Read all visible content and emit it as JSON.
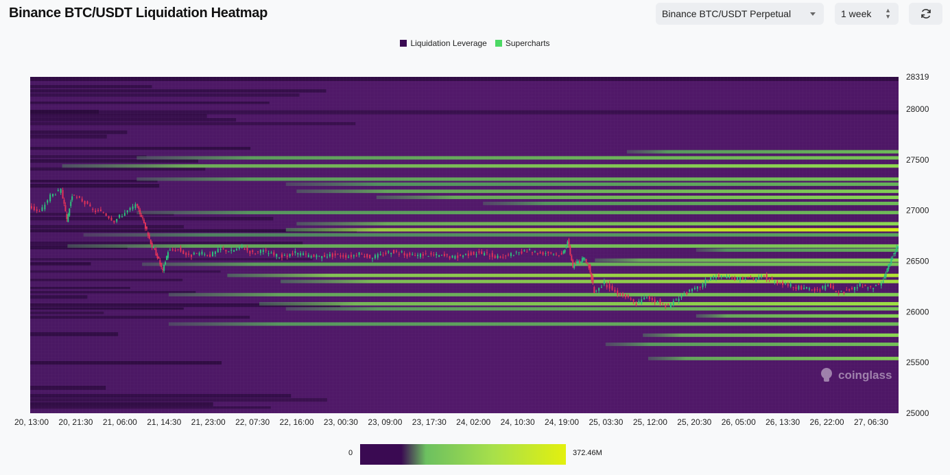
{
  "page": {
    "title": "Binance BTC/USDT Liquidation Heatmap",
    "symbol_select": "Binance BTC/USDT Perpetual",
    "period_select": "1 week",
    "refresh_icon": "refresh-icon"
  },
  "legend": [
    {
      "label": "Liquidation Leverage",
      "color": "#3a0a52"
    },
    {
      "label": "Supercharts",
      "color": "#4cd964"
    }
  ],
  "watermark": "coinglass",
  "color_scale": {
    "min_label": "0",
    "max_label": "372.46M",
    "stops": [
      "#3a0a52",
      "#3a0a52",
      "#6cc060",
      "#a8e04a",
      "#e3f00e"
    ]
  },
  "chart_data": {
    "type": "heatmap",
    "title": "Binance BTC/USDT Liquidation Heatmap",
    "x_tick_labels": [
      "20, 13:00",
      "20, 21:30",
      "21, 06:00",
      "21, 14:30",
      "21, 23:00",
      "22, 07:30",
      "22, 16:00",
      "23, 00:30",
      "23, 09:00",
      "23, 17:30",
      "24, 02:00",
      "24, 10:30",
      "24, 19:00",
      "25, 03:30",
      "25, 12:00",
      "25, 20:30",
      "26, 05:00",
      "26, 13:30",
      "26, 22:00",
      "27, 06:30"
    ],
    "y_tick_labels": [
      "28319",
      "28000",
      "27500",
      "27000",
      "26500",
      "26000",
      "25500",
      "25000"
    ],
    "y_ticks": [
      28319,
      28000,
      27500,
      27000,
      26500,
      26000,
      25500,
      25000
    ],
    "ylim": [
      25000,
      28319
    ],
    "x_range_hours": [
      0,
      163
    ],
    "liquidation_bands": [
      {
        "price": 27580,
        "start_h": 112,
        "intensity": 0.45
      },
      {
        "price": 27520,
        "start_h": 20,
        "intensity": 0.5
      },
      {
        "price": 27440,
        "start_h": 6,
        "intensity": 0.62
      },
      {
        "price": 27310,
        "start_h": 20,
        "intensity": 0.5
      },
      {
        "price": 27260,
        "start_h": 48,
        "intensity": 0.42
      },
      {
        "price": 27190,
        "start_h": 50,
        "intensity": 0.55
      },
      {
        "price": 27130,
        "start_h": 65,
        "intensity": 0.58
      },
      {
        "price": 27070,
        "start_h": 85,
        "intensity": 0.45
      },
      {
        "price": 26980,
        "start_h": 20,
        "intensity": 0.45
      },
      {
        "price": 26870,
        "start_h": 50,
        "intensity": 0.6
      },
      {
        "price": 26810,
        "start_h": 48,
        "intensity": 0.95
      },
      {
        "price": 26760,
        "start_h": 10,
        "intensity": 0.35
      },
      {
        "price": 26650,
        "start_h": 7,
        "intensity": 0.55
      },
      {
        "price": 26610,
        "start_h": 125,
        "intensity": 0.42
      },
      {
        "price": 26510,
        "start_h": 106,
        "intensity": 0.6
      },
      {
        "price": 26470,
        "start_h": 21,
        "intensity": 0.5
      },
      {
        "price": 26360,
        "start_h": 37,
        "intensity": 0.78
      },
      {
        "price": 26300,
        "start_h": 47,
        "intensity": 0.72
      },
      {
        "price": 26170,
        "start_h": 26,
        "intensity": 0.55
      },
      {
        "price": 26080,
        "start_h": 43,
        "intensity": 0.68
      },
      {
        "price": 26030,
        "start_h": 48,
        "intensity": 0.48
      },
      {
        "price": 25960,
        "start_h": 125,
        "intensity": 0.58
      },
      {
        "price": 25880,
        "start_h": 26,
        "intensity": 0.45
      },
      {
        "price": 25770,
        "start_h": 115,
        "intensity": 0.6
      },
      {
        "price": 25680,
        "start_h": 108,
        "intensity": 0.48
      },
      {
        "price": 25540,
        "start_h": 116,
        "intensity": 0.55
      }
    ],
    "price_series": {
      "name": "Supercharts",
      "hours": [
        0,
        2,
        4,
        6,
        7,
        8,
        10,
        12,
        14,
        16,
        18,
        20,
        21,
        22,
        23,
        24,
        25,
        26,
        28,
        30,
        32,
        34,
        36,
        38,
        40,
        42,
        44,
        46,
        48,
        50,
        52,
        54,
        56,
        58,
        60,
        62,
        64,
        66,
        68,
        70,
        72,
        74,
        76,
        78,
        80,
        82,
        84,
        86,
        88,
        90,
        92,
        94,
        96,
        98,
        100,
        101,
        102,
        103,
        104,
        105,
        106,
        108,
        110,
        112,
        114,
        116,
        118,
        120,
        122,
        124,
        126,
        128,
        130,
        132,
        134,
        136,
        138,
        140,
        142,
        144,
        146,
        148,
        150,
        152,
        154,
        156,
        158,
        160,
        161,
        162,
        163
      ],
      "values": [
        27050,
        26980,
        27150,
        27200,
        26900,
        27150,
        27100,
        27000,
        26980,
        26900,
        26980,
        27050,
        26950,
        26800,
        26650,
        26550,
        26400,
        26600,
        26620,
        26550,
        26580,
        26560,
        26620,
        26600,
        26640,
        26580,
        26600,
        26560,
        26540,
        26580,
        26560,
        26540,
        26560,
        26560,
        26550,
        26570,
        26540,
        26560,
        26600,
        26580,
        26550,
        26570,
        26560,
        26550,
        26540,
        26570,
        26580,
        26570,
        26540,
        26560,
        26580,
        26600,
        26580,
        26590,
        26560,
        26700,
        26450,
        26500,
        26520,
        26450,
        26200,
        26280,
        26200,
        26150,
        26080,
        26150,
        26100,
        26050,
        26150,
        26200,
        26250,
        26350,
        26350,
        26320,
        26340,
        26320,
        26350,
        26300,
        26280,
        26240,
        26230,
        26210,
        26260,
        26180,
        26220,
        26260,
        26230,
        26280,
        26420,
        26550,
        26650
      ]
    },
    "color_scale_range": [
      0,
      372.46
    ]
  }
}
